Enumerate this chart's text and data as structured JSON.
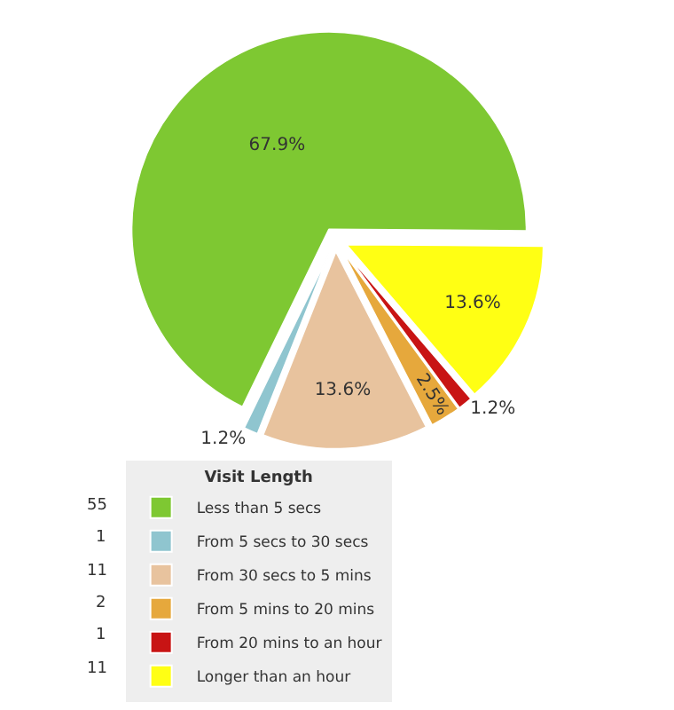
{
  "chart_data": {
    "type": "pie",
    "legend_title": "Visit Length",
    "categories": [
      "Less than 5 secs",
      "From 5 secs to 30 secs",
      "From 30 secs to 5 mins",
      "From 5 mins to 20 mins",
      "From 20 mins to an hour",
      "Longer than an hour"
    ],
    "values": [
      67.9,
      1.2,
      13.6,
      2.5,
      1.2,
      13.6
    ],
    "value_labels": [
      "67.9%",
      "1.2%",
      "13.6%",
      "2.5%",
      "1.2%",
      "13.6%"
    ],
    "annotations": [
      "55",
      "1",
      "11",
      "2",
      "1",
      "11"
    ],
    "colors": [
      "#7ec832",
      "#8fc5cf",
      "#e8c39e",
      "#e6a83c",
      "#c81414",
      "#ffff14"
    ],
    "legend": "bottom left"
  }
}
